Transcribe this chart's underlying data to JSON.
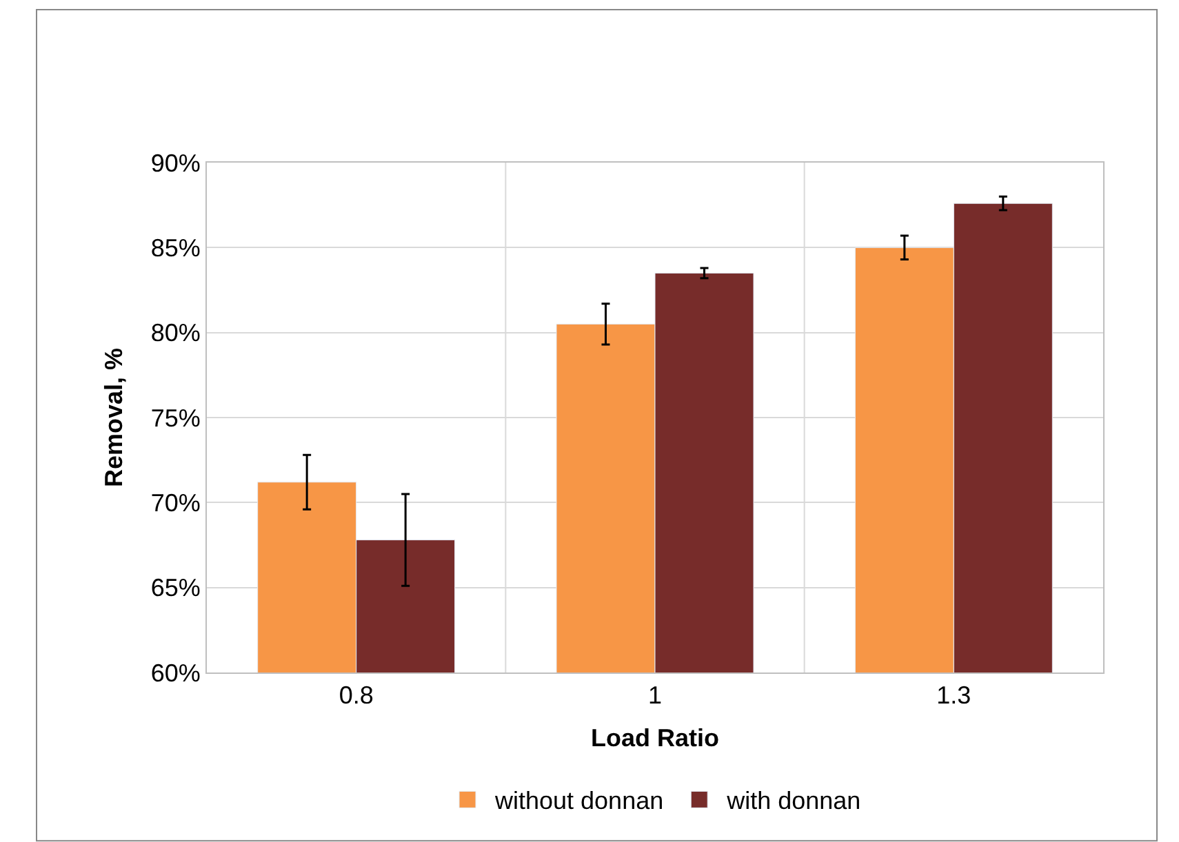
{
  "chart_data": {
    "type": "bar",
    "xlabel": "Load Ratio",
    "ylabel": "Removal, %",
    "categories": [
      "0.8",
      "1",
      "1.3"
    ],
    "series": [
      {
        "name": "without donnan",
        "color": "#f79646",
        "values": [
          71.2,
          80.5,
          85.0
        ],
        "errors": [
          1.6,
          1.2,
          0.7
        ]
      },
      {
        "name": "with donnan",
        "color": "#772c2a",
        "values": [
          67.8,
          83.5,
          87.6
        ],
        "errors": [
          2.7,
          0.3,
          0.4
        ]
      }
    ],
    "ylim": [
      60,
      90
    ],
    "yticks": [
      {
        "value": 60,
        "label": "60%"
      },
      {
        "value": 65,
        "label": "65%"
      },
      {
        "value": 70,
        "label": "70%"
      },
      {
        "value": 75,
        "label": "75%"
      },
      {
        "value": 80,
        "label": "80%"
      },
      {
        "value": 85,
        "label": "85%"
      },
      {
        "value": 90,
        "label": "90%"
      }
    ],
    "grid": true,
    "legend": "bottom"
  }
}
